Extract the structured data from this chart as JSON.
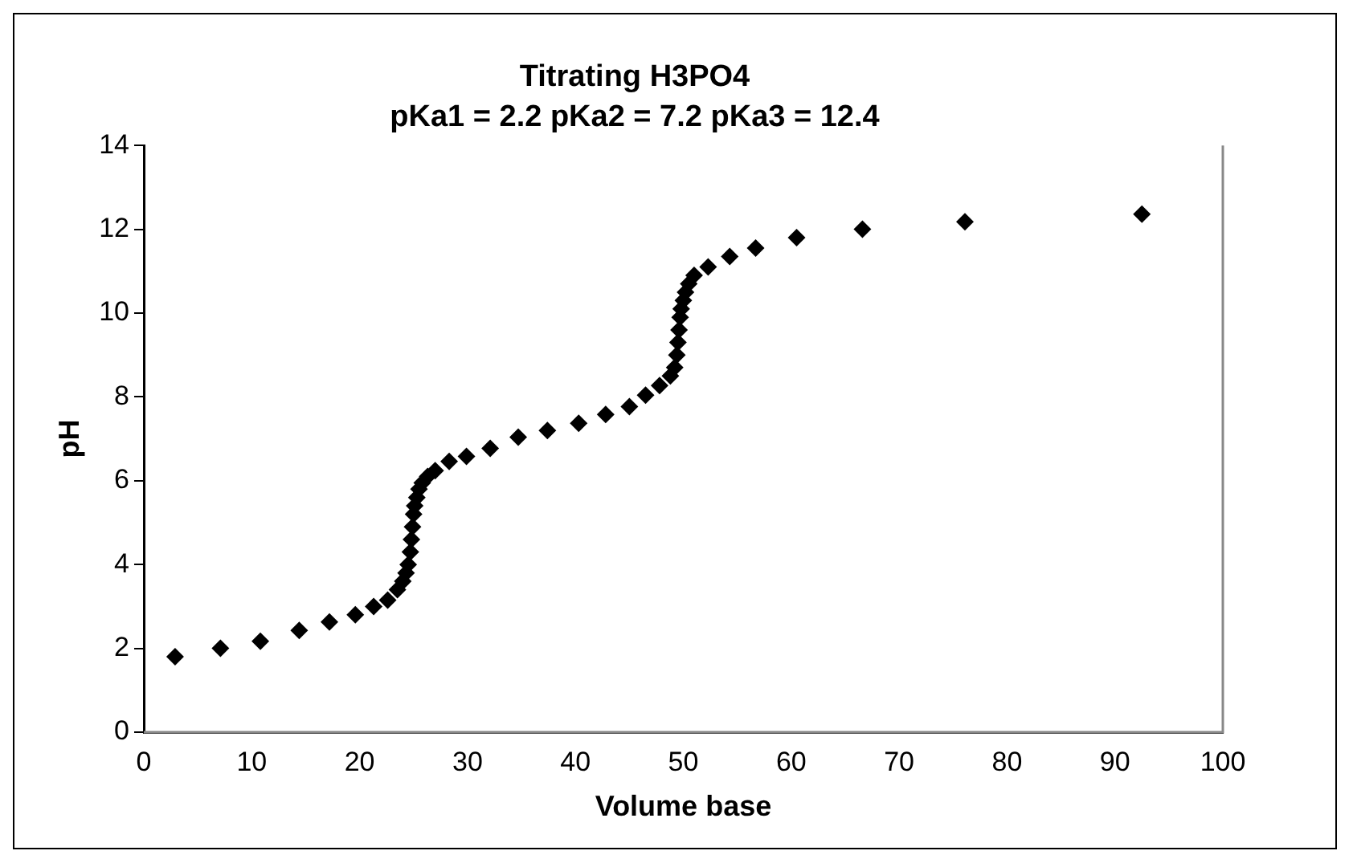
{
  "chart_data": {
    "type": "scatter",
    "title": "Titrating H3PO4",
    "subtitle": "pKa1 = 2.2 pKa2 = 7.2 pKa3 = 12.4",
    "xlabel": "Volume base",
    "ylabel": "pH",
    "x": [
      2.9,
      7.1,
      10.8,
      14.4,
      17.2,
      19.6,
      21.3,
      22.6,
      23.5,
      24.0,
      24.3,
      24.5,
      24.7,
      24.8,
      24.9,
      25.0,
      25.1,
      25.3,
      25.5,
      25.8,
      26.3,
      27.0,
      28.3,
      29.9,
      32.1,
      34.7,
      37.4,
      40.3,
      42.8,
      45.0,
      46.5,
      47.8,
      48.8,
      49.2,
      49.4,
      49.5,
      49.6,
      49.7,
      49.8,
      50.0,
      50.2,
      50.5,
      51.0,
      52.3,
      54.3,
      56.7,
      60.5,
      66.6,
      76.1,
      92.5
    ],
    "series": [
      {
        "color": "#000000",
        "values": [
          1.8,
          2.0,
          2.17,
          2.43,
          2.63,
          2.8,
          3.0,
          3.15,
          3.4,
          3.6,
          3.8,
          4.0,
          4.3,
          4.6,
          4.9,
          5.2,
          5.4,
          5.6,
          5.8,
          5.95,
          6.1,
          6.24,
          6.46,
          6.58,
          6.77,
          7.04,
          7.2,
          7.37,
          7.58,
          7.77,
          8.04,
          8.27,
          8.5,
          8.7,
          9.0,
          9.3,
          9.6,
          9.9,
          10.1,
          10.3,
          10.5,
          10.7,
          10.9,
          11.1,
          11.35,
          11.55,
          11.8,
          12.0,
          12.18,
          12.36
        ]
      }
    ],
    "xlim": [
      0,
      100
    ],
    "xticks": [
      0,
      10,
      20,
      30,
      40,
      50,
      60,
      70,
      80,
      90,
      100
    ],
    "ylim": [
      0,
      14
    ],
    "yticks": [
      0,
      2,
      4,
      6,
      8,
      10,
      12,
      14
    ],
    "grid": false,
    "legend": false,
    "marker": "diamond"
  }
}
